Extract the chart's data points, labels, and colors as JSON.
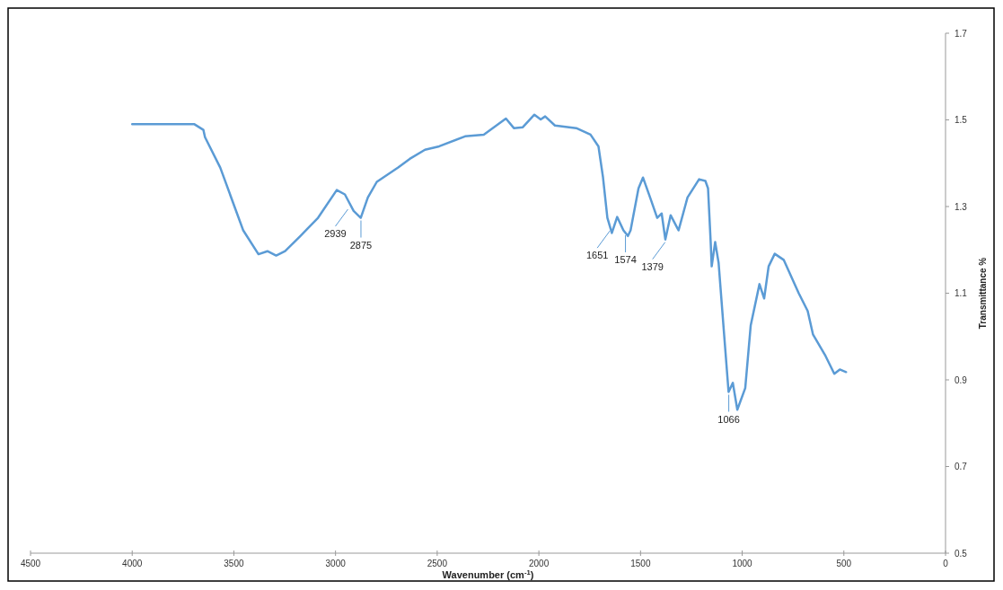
{
  "chart_data": {
    "type": "line",
    "xlabel": "Wavenumber (cm$^{-1}$)",
    "ylabel": "Transmittance %",
    "x": [
      4000,
      3773,
      3694,
      3650,
      3642,
      3567,
      3497,
      3454,
      3379,
      3335,
      3292,
      3248,
      3173,
      3086,
      2994,
      2954,
      2911,
      2876,
      2841,
      2797,
      2692,
      2635,
      2560,
      2490,
      2363,
      2271,
      2162,
      2123,
      2079,
      2022,
      1991,
      1969,
      1921,
      1816,
      1746,
      1707,
      1685,
      1663,
      1641,
      1615,
      1584,
      1562,
      1549,
      1510,
      1488,
      1453,
      1418,
      1396,
      1378,
      1352,
      1313,
      1269,
      1212,
      1181,
      1168,
      1155,
      1150,
      1133,
      1116,
      1090,
      1067,
      1046,
      1024,
      985,
      958,
      915,
      892,
      870,
      840,
      796,
      722,
      678,
      652,
      590,
      547,
      520,
      489
    ],
    "series": [
      {
        "color": "#5b9bd5",
        "values": [
          1.49,
          1.49,
          1.49,
          1.477,
          1.46,
          1.39,
          1.3,
          1.245,
          1.19,
          1.197,
          1.187,
          1.197,
          1.232,
          1.274,
          1.338,
          1.328,
          1.29,
          1.274,
          1.321,
          1.357,
          1.39,
          1.41,
          1.431,
          1.439,
          1.462,
          1.466,
          1.503,
          1.481,
          1.483,
          1.512,
          1.501,
          1.508,
          1.487,
          1.481,
          1.466,
          1.439,
          1.369,
          1.274,
          1.239,
          1.276,
          1.245,
          1.232,
          1.245,
          1.342,
          1.367,
          1.321,
          1.274,
          1.284,
          1.224,
          1.28,
          1.245,
          1.321,
          1.363,
          1.359,
          1.342,
          1.218,
          1.162,
          1.218,
          1.17,
          1.011,
          0.872,
          0.893,
          0.831,
          0.881,
          1.026,
          1.121,
          1.088,
          1.162,
          1.191,
          1.177,
          1.1,
          1.059,
          1.005,
          0.955,
          0.914,
          0.924,
          0.918
        ]
      }
    ],
    "xlim": [
      4500,
      0
    ],
    "xticks": [
      4500,
      4000,
      3500,
      3000,
      2500,
      2000,
      1500,
      1000,
      500,
      0
    ],
    "ylim": [
      0.5,
      1.7
    ],
    "yticks": [
      0.5,
      0.7,
      0.9,
      1.1,
      1.3,
      1.5,
      1.7
    ],
    "grid": false,
    "marker": "none",
    "line_style": "solid",
    "annotations": [
      {
        "text": "2939",
        "x": 2939,
        "y": 1.3
      },
      {
        "text": "2875",
        "x": 2875,
        "y": 1.274
      },
      {
        "text": "1651",
        "x": 1651,
        "y": 1.25
      },
      {
        "text": "1574",
        "x": 1574,
        "y": 1.24
      },
      {
        "text": "1379",
        "x": 1379,
        "y": 1.224
      },
      {
        "text": "1066",
        "x": 1066,
        "y": 0.872
      }
    ]
  }
}
